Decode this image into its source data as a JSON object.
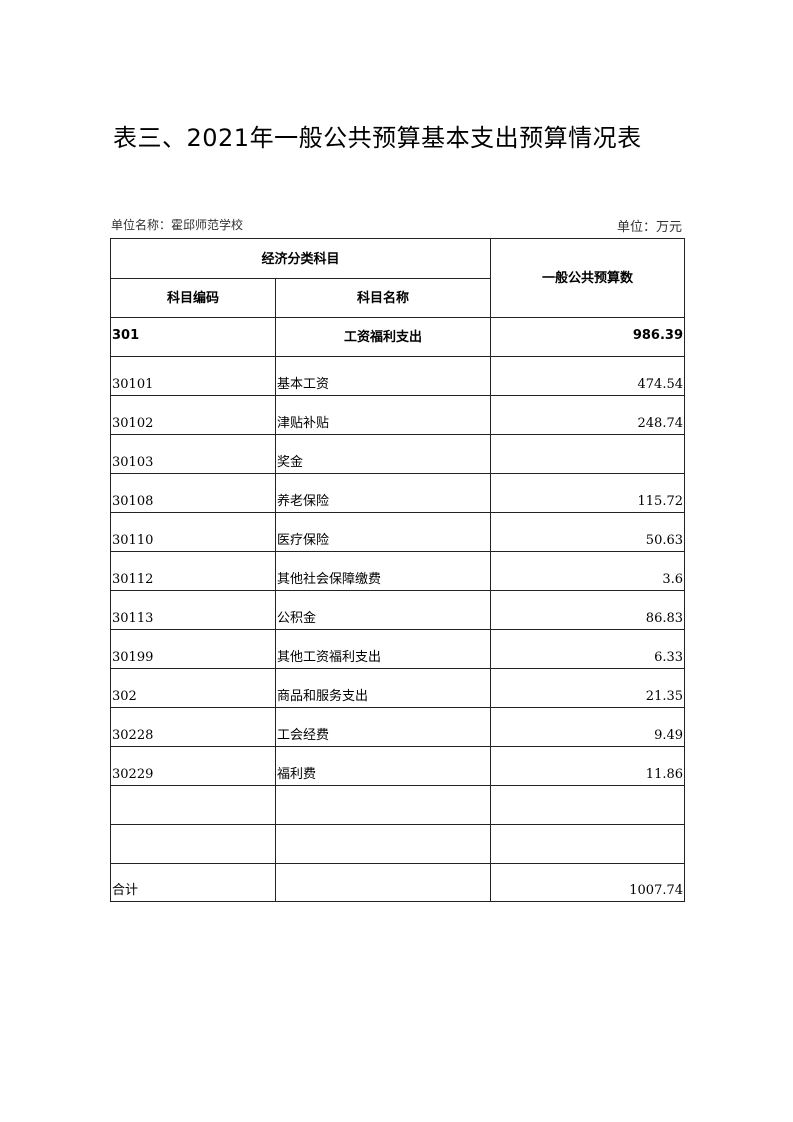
{
  "title": "表三、2021年一般公共预算基本支出预算情况表",
  "unit_name_label": "单位名称：霍邱师范学校",
  "unit_label": "单位：万元",
  "table": {
    "group_header": "经济分类科目",
    "col_code": "科目编码",
    "col_name": "科目名称",
    "col_amount": "一般公共预算数",
    "rows": [
      {
        "code": "301",
        "name": "工资福利支出",
        "amount": "986.39"
      },
      {
        "code": "30101",
        "name": "基本工资",
        "amount": "474.54"
      },
      {
        "code": "30102",
        "name": "津贴补贴",
        "amount": "248.74"
      },
      {
        "code": "30103",
        "name": "奖金",
        "amount": ""
      },
      {
        "code": "30108",
        "name": "养老保险",
        "amount": "115.72"
      },
      {
        "code": "30110",
        "name": "医疗保险",
        "amount": "50.63"
      },
      {
        "code": "30112",
        "name": "其他社会保障缴费",
        "amount": "3.6"
      },
      {
        "code": "30113",
        "name": "公积金",
        "amount": "86.83"
      },
      {
        "code": "30199",
        "name": "其他工资福利支出",
        "amount": "6.33"
      },
      {
        "code": "302",
        "name": "商品和服务支出",
        "amount": "21.35"
      },
      {
        "code": "30228",
        "name": "工会经费",
        "amount": "9.49"
      },
      {
        "code": "30229",
        "name": "福利费",
        "amount": "11.86"
      },
      {
        "code": "",
        "name": "",
        "amount": ""
      },
      {
        "code": "",
        "name": "",
        "amount": ""
      }
    ],
    "total": {
      "label": "合计",
      "name": "",
      "amount": "1007.74"
    }
  }
}
